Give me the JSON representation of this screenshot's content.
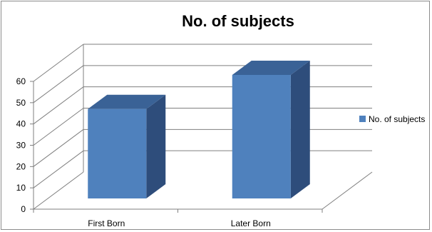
{
  "chart_data": {
    "type": "bar",
    "title": "No. of subjects",
    "categories": [
      "First Born",
      "Later Born"
    ],
    "series": [
      {
        "name": "No. of subjects",
        "values": [
          42,
          58
        ]
      }
    ],
    "ylim": [
      0,
      60
    ],
    "yticks": [
      "0",
      "10",
      "20",
      "30",
      "40",
      "50",
      "60"
    ],
    "grid": true,
    "legend_position": "right",
    "colors": {
      "bar_front": "#4f81bd",
      "bar_side": "#2e4d7b",
      "bar_top": "#3a6296",
      "grid": "#7f7f7f",
      "axis": "#7f7f7f"
    },
    "style": "3d-column"
  }
}
